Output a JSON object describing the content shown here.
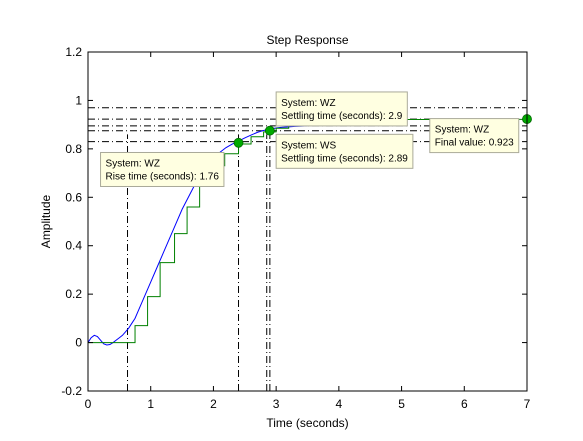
{
  "chart_data": {
    "type": "line",
    "title": "Step Response",
    "xlabel": "Time (seconds)",
    "ylabel": "Amplitude",
    "xlim": [
      0,
      7
    ],
    "ylim": [
      -0.2,
      1.2
    ],
    "xticks": [
      0,
      1,
      2,
      3,
      4,
      5,
      6,
      7
    ],
    "xtick_labels": [
      "0",
      "1",
      "2",
      "3",
      "4",
      "5",
      "6",
      "7"
    ],
    "yticks": [
      -0.2,
      0,
      0.2,
      0.4,
      0.6,
      0.8,
      1,
      1.2
    ],
    "ytick_labels": [
      "-0.2",
      "0",
      "0.2",
      "0.4",
      "0.6",
      "0.8",
      "1",
      "1.2"
    ],
    "grid": false,
    "series": [
      {
        "name": "WS",
        "style": "line",
        "color": "#0000ff",
        "x": [
          0,
          0.05,
          0.1,
          0.15,
          0.2,
          0.25,
          0.3,
          0.35,
          0.4,
          0.45,
          0.5,
          0.55,
          0.6,
          0.65,
          0.7,
          0.75,
          0.8,
          0.9,
          1.0,
          1.1,
          1.2,
          1.3,
          1.4,
          1.5,
          1.6,
          1.7,
          1.8,
          1.9,
          2.0,
          2.1,
          2.2,
          2.3,
          2.4,
          2.5,
          2.6,
          2.7,
          2.8,
          2.9,
          3.0,
          3.1,
          3.2,
          3.3,
          3.4,
          3.5
        ],
        "y": [
          0,
          0.02,
          0.03,
          0.025,
          0.01,
          -0.005,
          -0.01,
          -0.008,
          0.0,
          0.01,
          0.02,
          0.03,
          0.045,
          0.06,
          0.08,
          0.1,
          0.13,
          0.19,
          0.25,
          0.31,
          0.37,
          0.43,
          0.49,
          0.55,
          0.6,
          0.65,
          0.69,
          0.73,
          0.76,
          0.785,
          0.805,
          0.82,
          0.832,
          0.845,
          0.857,
          0.868,
          0.876,
          0.882,
          0.886,
          0.889,
          0.891,
          0.893,
          0.894,
          0.895
        ]
      },
      {
        "name": "WZ",
        "style": "stairs",
        "color": "#008000",
        "x": [
          0,
          0.6,
          0.75,
          0.95,
          1.15,
          1.38,
          1.58,
          1.78,
          1.98,
          2.18,
          2.4,
          2.6,
          2.8,
          3.0,
          3.2,
          3.4,
          3.6,
          3.8,
          4.0,
          5.0,
          6.0,
          7.0
        ],
        "y": [
          0,
          0.0,
          0.07,
          0.19,
          0.33,
          0.45,
          0.56,
          0.66,
          0.73,
          0.78,
          0.82,
          0.85,
          0.87,
          0.885,
          0.895,
          0.905,
          0.91,
          0.915,
          0.918,
          0.921,
          0.922,
          0.923
        ]
      }
    ],
    "reference_lines": {
      "horizontal": [
        0.97,
        0.923,
        0.895,
        0.875,
        0.83
      ],
      "vertical": [
        0.63,
        2.4,
        2.85,
        2.9
      ]
    },
    "markers": [
      {
        "x": 2.4,
        "y": 0.825,
        "color": "#00aa00"
      },
      {
        "x": 2.9,
        "y": 0.875,
        "color": "#00aa00"
      },
      {
        "x": 7.0,
        "y": 0.923,
        "color": "#00aa00"
      }
    ],
    "datatips": [
      {
        "lines": [
          "System: WZ",
          "Rise time (seconds): 1.76"
        ],
        "anchor": {
          "x": 0.2,
          "y": 0.785
        }
      },
      {
        "lines": [
          "System: WZ",
          "Settling time (seconds): 2.9"
        ],
        "anchor": {
          "x": 3.0,
          "y": 1.035
        }
      },
      {
        "lines": [
          "System: WS",
          "Settling time (seconds): 2.89"
        ],
        "anchor": {
          "x": 3.0,
          "y": 0.86
        }
      },
      {
        "lines": [
          "System: WZ",
          "Final value: 0.923"
        ],
        "anchor": {
          "x": 5.45,
          "y": 0.925
        }
      }
    ]
  }
}
